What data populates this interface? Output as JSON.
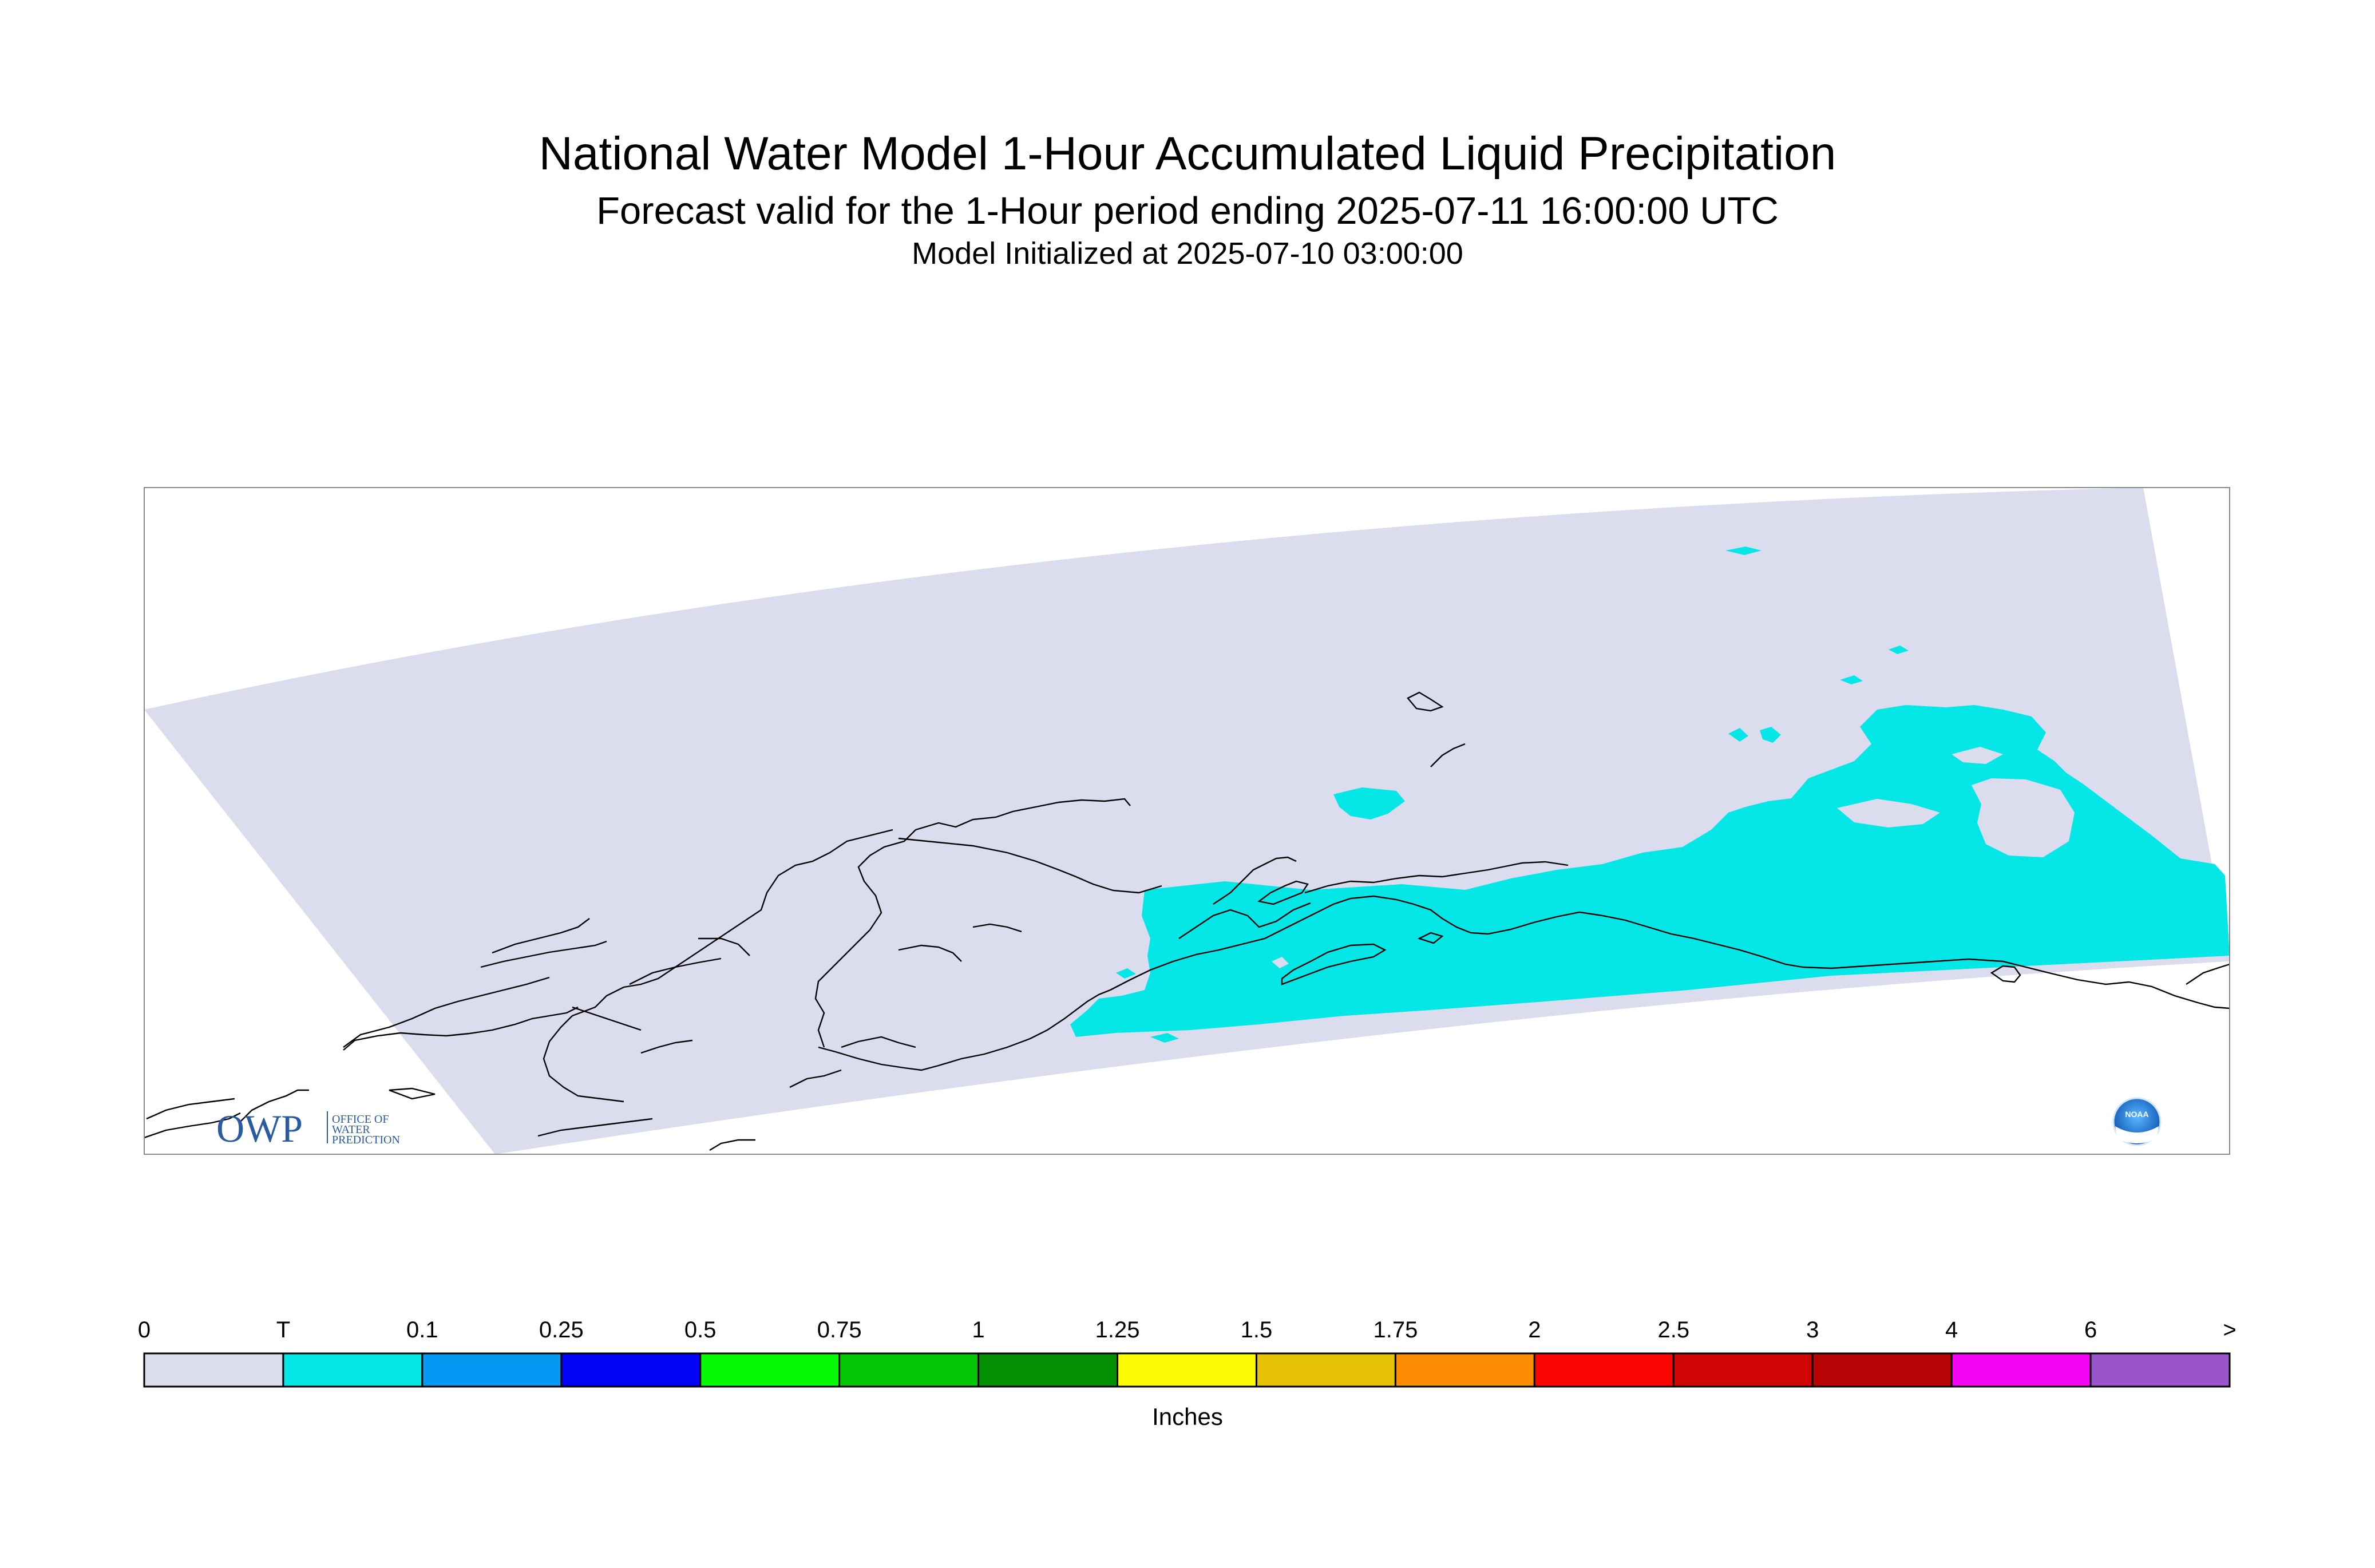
{
  "title": {
    "line1": "National Water Model 1-Hour Accumulated Liquid Precipitation",
    "line2": "Forecast valid for the 1-Hour period ending 2025-07-11 16:00:00 UTC",
    "line3": "Model Initialized at 2025-07-10 03:00:00"
  },
  "legend": {
    "unit_label": "Inches",
    "ticks": [
      "0",
      "T",
      "0.1",
      "0.25",
      "0.5",
      "0.75",
      "1",
      "1.25",
      "1.5",
      "1.75",
      "2",
      "2.5",
      "3",
      "4",
      "6",
      ">"
    ],
    "colors": [
      "#dcdcef",
      "#05e6e6",
      "#0699f4",
      "#0202f5",
      "#04fb04",
      "#04c504",
      "#038f03",
      "#fbfb04",
      "#e6c204",
      "#fc8c04",
      "#fc0404",
      "#d10404",
      "#b80404",
      "#f604f6",
      "#9a55cc"
    ]
  },
  "map": {
    "domain_color": "#dcdcef",
    "coast_color": "#000000",
    "precip_category": "T"
  },
  "logos": {
    "owp_text": "OWP",
    "owp_sub": [
      "OFFICE OF",
      "WATER",
      "PREDICTION"
    ],
    "noaa_text": "NOAA"
  }
}
